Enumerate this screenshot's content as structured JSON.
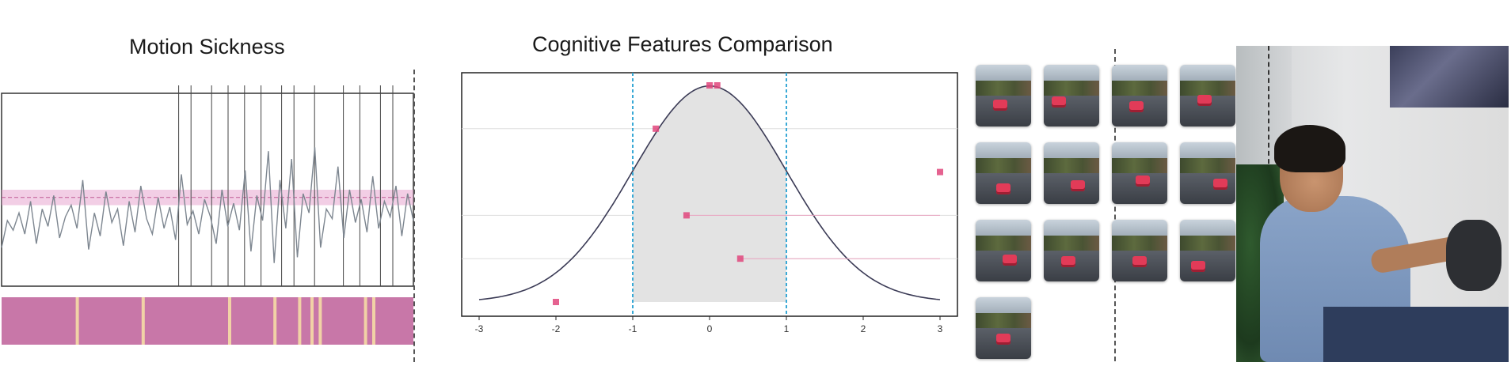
{
  "titles": {
    "motion_sickness": "Motion Sickness",
    "cognitive_features": "Cognitive Features Comparison"
  },
  "colors": {
    "pink_band": "#e7a6cf",
    "magenta_bar": "#c877a8",
    "beige_marker": "#f1d2a6",
    "signal_line": "#7d8690",
    "curve_fill": "#e3e3e3",
    "curve_line": "#3a3a55",
    "blue_dashed": "#39a9d6",
    "pink_points": "#e0467c"
  },
  "chart_data": [
    {
      "type": "line",
      "title": "Motion Sickness",
      "description_of_marks": "noisy signal with horizontal pink threshold band and vertical event markers; magenta event strip below",
      "signal": [
        20,
        34,
        29,
        38,
        27,
        44,
        22,
        40,
        31,
        47,
        25,
        36,
        42,
        30,
        55,
        19,
        38,
        26,
        49,
        33,
        40,
        21,
        44,
        28,
        52,
        35,
        27,
        46,
        30,
        41,
        24,
        58,
        32,
        39,
        27,
        45,
        36,
        22,
        50,
        31,
        43,
        29,
        60,
        18,
        47,
        34,
        70,
        12,
        55,
        30,
        66,
        15,
        48,
        38,
        72,
        20,
        40,
        35,
        62,
        25,
        50,
        33,
        45,
        28,
        57,
        30,
        44,
        36,
        52,
        26,
        48,
        34
      ],
      "threshold_band": [
        42,
        50
      ],
      "ylim": [
        0,
        100
      ]
    },
    {
      "type": "line",
      "title": "Cognitive Features Comparison",
      "x": [
        -3,
        -2.5,
        -2,
        -1.5,
        -1,
        -0.5,
        0,
        0.5,
        1,
        1.5,
        2,
        2.5,
        3
      ],
      "y": [
        0.004,
        0.018,
        0.054,
        0.13,
        0.242,
        0.352,
        0.399,
        0.352,
        0.242,
        0.13,
        0.054,
        0.018,
        0.004
      ],
      "xlim": [
        -3,
        3
      ],
      "ylim": [
        0,
        0.4
      ],
      "xticks": [
        "-3",
        "-2",
        "-1",
        "0",
        "1",
        "2",
        "3"
      ],
      "shaded_region": [
        -1,
        1
      ],
      "points": [
        {
          "x": -2.0,
          "y": 0.0
        },
        {
          "x": -0.7,
          "y": 0.32
        },
        {
          "x": -0.3,
          "y": 0.16
        },
        {
          "x": 0.0,
          "y": 0.4
        },
        {
          "x": 0.1,
          "y": 0.4
        },
        {
          "x": 0.4,
          "y": 0.08
        },
        {
          "x": 3.0,
          "y": 0.24
        }
      ]
    }
  ],
  "thumbnails": [
    {
      "row": 0,
      "col": 0,
      "car": [
        22,
        44
      ]
    },
    {
      "row": 0,
      "col": 1,
      "car": [
        10,
        40
      ]
    },
    {
      "row": 0,
      "col": 2,
      "car": [
        22,
        46
      ]
    },
    {
      "row": 0,
      "col": 3,
      "car": [
        22,
        38
      ]
    },
    {
      "row": 1,
      "col": 0,
      "car": [
        26,
        52
      ]
    },
    {
      "row": 1,
      "col": 1,
      "car": [
        34,
        48
      ]
    },
    {
      "row": 1,
      "col": 2,
      "car": [
        30,
        42
      ]
    },
    {
      "row": 1,
      "col": 3,
      "car": [
        42,
        46
      ]
    },
    {
      "row": 2,
      "col": 0,
      "car": [
        34,
        44
      ]
    },
    {
      "row": 2,
      "col": 1,
      "car": [
        22,
        46
      ]
    },
    {
      "row": 2,
      "col": 2,
      "car": [
        26,
        46
      ]
    },
    {
      "row": 2,
      "col": 3,
      "car": [
        14,
        52
      ]
    },
    {
      "row": 3,
      "col": 0,
      "car": [
        26,
        46
      ]
    }
  ]
}
